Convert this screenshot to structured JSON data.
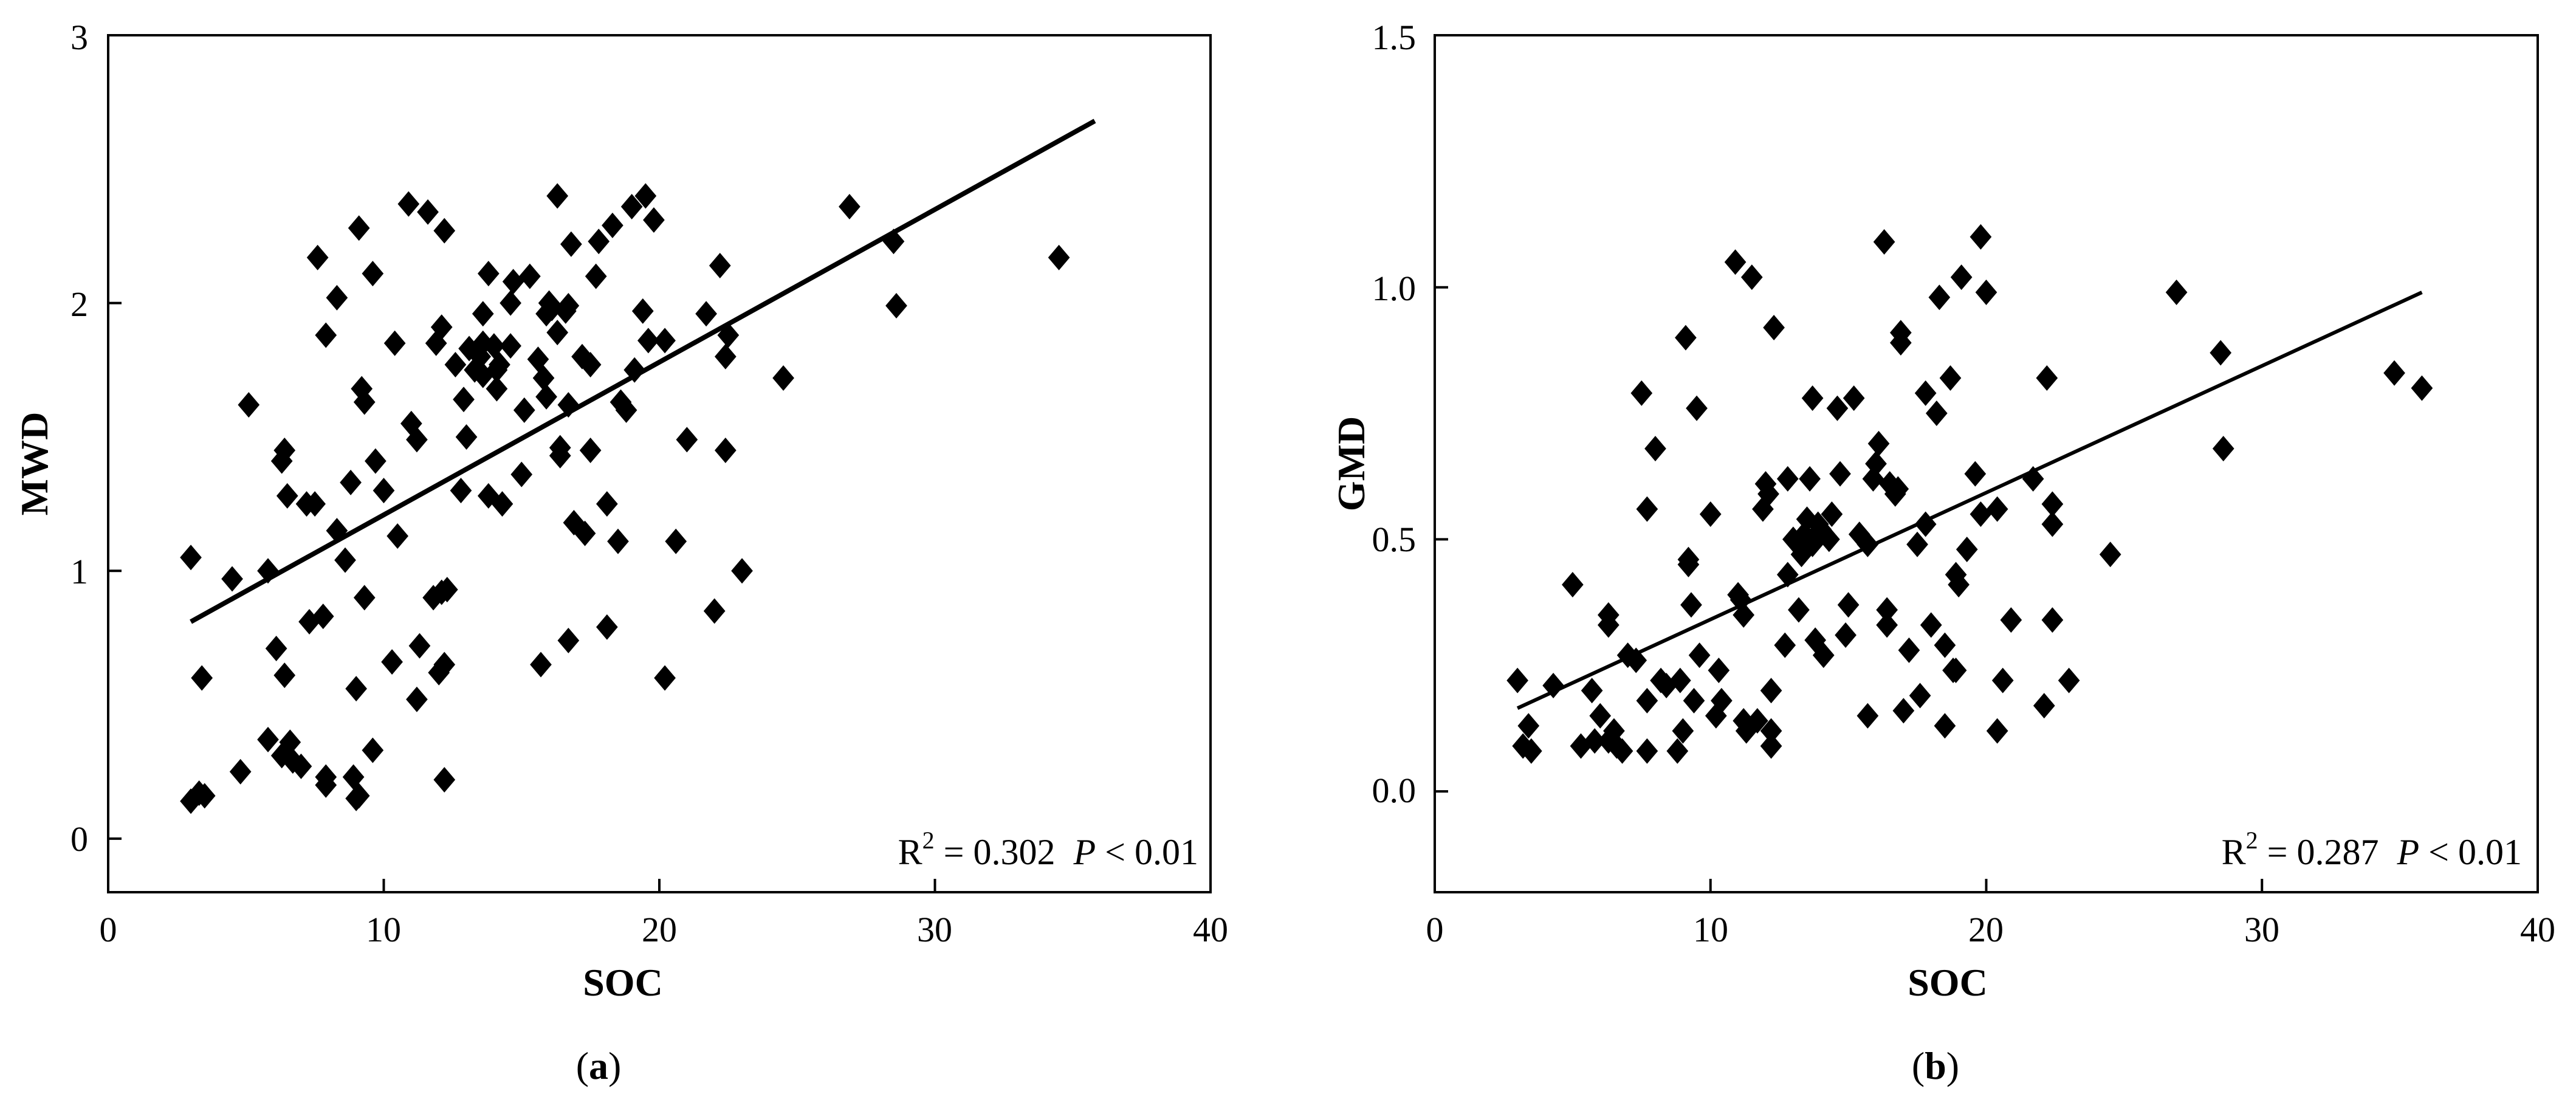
{
  "chart_data": [
    {
      "type": "scatter",
      "panel_label": "(a)",
      "xlabel": "SOC",
      "ylabel": "MWD",
      "xlim": [
        0,
        40
      ],
      "ylim": [
        -0.2,
        3
      ],
      "xticks": [
        "0",
        "10",
        "20",
        "30",
        "40"
      ],
      "yticks": [
        "0",
        "1",
        "2",
        "3"
      ],
      "annotation": {
        "r2_prefix": "R",
        "r2_sup": "2",
        "r2_value": " = 0.302",
        "p_letter": "P",
        "p_value": " < 0.01"
      },
      "fit_line": {
        "x": [
          3.0,
          35.8
        ],
        "y": [
          0.81,
          2.68
        ]
      },
      "points": [
        [
          3.0,
          1.05
        ],
        [
          3.0,
          0.14
        ],
        [
          3.3,
          0.17
        ],
        [
          3.5,
          0.16
        ],
        [
          3.4,
          0.6
        ],
        [
          4.5,
          0.97
        ],
        [
          4.8,
          0.25
        ],
        [
          5.1,
          1.62
        ],
        [
          5.8,
          1.0
        ],
        [
          5.8,
          0.37
        ],
        [
          6.1,
          0.71
        ],
        [
          6.3,
          0.31
        ],
        [
          6.3,
          1.41
        ],
        [
          6.4,
          1.45
        ],
        [
          6.4,
          0.61
        ],
        [
          6.5,
          1.28
        ],
        [
          6.6,
          0.36
        ],
        [
          6.7,
          0.29
        ],
        [
          7.0,
          0.27
        ],
        [
          7.2,
          1.25
        ],
        [
          7.3,
          0.81
        ],
        [
          7.5,
          1.25
        ],
        [
          7.6,
          2.17
        ],
        [
          7.8,
          0.83
        ],
        [
          7.9,
          0.23
        ],
        [
          7.9,
          1.88
        ],
        [
          7.9,
          0.2
        ],
        [
          8.3,
          2.02
        ],
        [
          8.3,
          1.15
        ],
        [
          8.6,
          1.04
        ],
        [
          8.8,
          1.33
        ],
        [
          8.9,
          0.23
        ],
        [
          9.0,
          0.15
        ],
        [
          9.1,
          2.28
        ],
        [
          9.1,
          0.16
        ],
        [
          9.0,
          0.56
        ],
        [
          9.2,
          1.68
        ],
        [
          9.3,
          1.63
        ],
        [
          9.3,
          0.9
        ],
        [
          9.6,
          2.11
        ],
        [
          9.6,
          0.33
        ],
        [
          9.7,
          1.41
        ],
        [
          10.0,
          1.3
        ],
        [
          10.3,
          0.66
        ],
        [
          10.4,
          1.85
        ],
        [
          10.5,
          1.13
        ],
        [
          10.9,
          2.37
        ],
        [
          11.0,
          1.55
        ],
        [
          11.2,
          1.49
        ],
        [
          11.2,
          0.52
        ],
        [
          11.3,
          0.72
        ],
        [
          11.6,
          2.34
        ],
        [
          11.8,
          0.9
        ],
        [
          11.9,
          1.85
        ],
        [
          12.0,
          0.62
        ],
        [
          12.1,
          0.92
        ],
        [
          12.1,
          1.91
        ],
        [
          12.2,
          2.27
        ],
        [
          12.2,
          0.65
        ],
        [
          12.2,
          0.22
        ],
        [
          12.3,
          0.93
        ],
        [
          12.6,
          1.77
        ],
        [
          12.8,
          1.3
        ],
        [
          12.9,
          1.64
        ],
        [
          13.1,
          1.83
        ],
        [
          13.0,
          1.5
        ],
        [
          13.3,
          1.75
        ],
        [
          13.5,
          1.8
        ],
        [
          13.6,
          1.73
        ],
        [
          13.6,
          1.85
        ],
        [
          13.6,
          1.96
        ],
        [
          13.8,
          2.11
        ],
        [
          13.8,
          1.28
        ],
        [
          14.0,
          1.84
        ],
        [
          14.1,
          1.75
        ],
        [
          14.1,
          1.68
        ],
        [
          14.2,
          1.77
        ],
        [
          14.3,
          1.25
        ],
        [
          14.6,
          1.84
        ],
        [
          14.6,
          2.0
        ],
        [
          14.7,
          2.08
        ],
        [
          15.0,
          1.36
        ],
        [
          15.1,
          1.6
        ],
        [
          15.3,
          2.1
        ],
        [
          15.6,
          1.79
        ],
        [
          15.7,
          0.65
        ],
        [
          15.8,
          1.72
        ],
        [
          15.9,
          1.96
        ],
        [
          15.9,
          1.65
        ],
        [
          16.0,
          2.0
        ],
        [
          16.1,
          1.98
        ],
        [
          16.3,
          2.4
        ],
        [
          16.3,
          1.89
        ],
        [
          16.4,
          1.43
        ],
        [
          16.4,
          1.46
        ],
        [
          16.6,
          1.97
        ],
        [
          16.7,
          1.99
        ],
        [
          16.7,
          1.62
        ],
        [
          16.8,
          2.22
        ],
        [
          16.7,
          0.74
        ],
        [
          16.9,
          1.18
        ],
        [
          17.2,
          1.8
        ],
        [
          17.3,
          1.14
        ],
        [
          17.5,
          1.77
        ],
        [
          17.5,
          1.45
        ],
        [
          17.7,
          2.1
        ],
        [
          17.8,
          2.23
        ],
        [
          18.1,
          1.25
        ],
        [
          18.1,
          0.79
        ],
        [
          18.3,
          2.29
        ],
        [
          18.5,
          1.11
        ],
        [
          18.6,
          1.63
        ],
        [
          18.8,
          1.6
        ],
        [
          19.0,
          2.36
        ],
        [
          19.1,
          1.75
        ],
        [
          19.4,
          1.97
        ],
        [
          19.5,
          2.4
        ],
        [
          19.6,
          1.86
        ],
        [
          19.8,
          2.31
        ],
        [
          20.2,
          1.86
        ],
        [
          20.2,
          0.6
        ],
        [
          20.6,
          1.11
        ],
        [
          21.0,
          1.49
        ],
        [
          21.7,
          1.96
        ],
        [
          22.0,
          0.85
        ],
        [
          22.2,
          2.14
        ],
        [
          22.4,
          1.8
        ],
        [
          22.4,
          1.45
        ],
        [
          22.5,
          1.88
        ],
        [
          23.0,
          1.0
        ],
        [
          24.5,
          1.72
        ],
        [
          26.9,
          2.36
        ],
        [
          28.5,
          2.23
        ],
        [
          28.6,
          1.99
        ],
        [
          34.5,
          2.17
        ]
      ]
    },
    {
      "type": "scatter",
      "panel_label": "(b)",
      "xlabel": "SOC",
      "ylabel": "GMD",
      "xlim": [
        0,
        40
      ],
      "ylim": [
        -0.2,
        1.5
      ],
      "xticks": [
        "0",
        "10",
        "20",
        "30",
        "40"
      ],
      "yticks": [
        "0.0",
        "0.5",
        "1.0",
        "1.5"
      ],
      "annotation": {
        "r2_prefix": "R",
        "r2_sup": "2",
        "r2_value": " = 0.287",
        "p_letter": "P",
        "p_value": " < 0.01"
      },
      "fit_line": {
        "x": [
          3.0,
          35.8
        ],
        "y": [
          0.165,
          0.99
        ]
      },
      "points": [
        [
          3.0,
          0.22
        ],
        [
          3.2,
          0.09
        ],
        [
          3.4,
          0.13
        ],
        [
          3.5,
          0.08
        ],
        [
          4.3,
          0.21
        ],
        [
          5.0,
          0.41
        ],
        [
          5.3,
          0.09
        ],
        [
          5.7,
          0.2
        ],
        [
          5.8,
          0.1
        ],
        [
          6.0,
          0.15
        ],
        [
          6.3,
          0.1
        ],
        [
          6.3,
          0.35
        ],
        [
          6.3,
          0.33
        ],
        [
          6.5,
          0.12
        ],
        [
          6.6,
          0.09
        ],
        [
          6.8,
          0.08
        ],
        [
          7.0,
          0.27
        ],
        [
          7.3,
          0.26
        ],
        [
          7.5,
          0.79
        ],
        [
          7.7,
          0.56
        ],
        [
          7.7,
          0.18
        ],
        [
          7.7,
          0.08
        ],
        [
          8.0,
          0.68
        ],
        [
          8.2,
          0.22
        ],
        [
          8.4,
          0.21
        ],
        [
          8.8,
          0.08
        ],
        [
          8.9,
          0.22
        ],
        [
          9.0,
          0.12
        ],
        [
          9.1,
          0.9
        ],
        [
          9.2,
          0.46
        ],
        [
          9.2,
          0.45
        ],
        [
          9.3,
          0.37
        ],
        [
          9.4,
          0.18
        ],
        [
          9.5,
          0.76
        ],
        [
          9.6,
          0.27
        ],
        [
          10.0,
          0.55
        ],
        [
          10.2,
          0.15
        ],
        [
          10.3,
          0.24
        ],
        [
          10.4,
          0.18
        ],
        [
          10.9,
          1.05
        ],
        [
          11.0,
          0.39
        ],
        [
          11.1,
          0.38
        ],
        [
          11.2,
          0.14
        ],
        [
          11.2,
          0.35
        ],
        [
          11.3,
          0.12
        ],
        [
          11.5,
          1.02
        ],
        [
          11.7,
          0.14
        ],
        [
          11.9,
          0.56
        ],
        [
          12.0,
          0.61
        ],
        [
          12.1,
          0.59
        ],
        [
          12.2,
          0.09
        ],
        [
          12.2,
          0.12
        ],
        [
          12.2,
          0.2
        ],
        [
          12.3,
          0.92
        ],
        [
          12.7,
          0.29
        ],
        [
          12.8,
          0.43
        ],
        [
          12.8,
          0.62
        ],
        [
          13.0,
          0.5
        ],
        [
          13.2,
          0.36
        ],
        [
          13.3,
          0.47
        ],
        [
          13.4,
          0.51
        ],
        [
          13.5,
          0.54
        ],
        [
          13.6,
          0.62
        ],
        [
          13.7,
          0.78
        ],
        [
          13.7,
          0.49
        ],
        [
          13.8,
          0.3
        ],
        [
          13.9,
          0.53
        ],
        [
          14.0,
          0.52
        ],
        [
          14.1,
          0.27
        ],
        [
          14.3,
          0.5
        ],
        [
          14.4,
          0.55
        ],
        [
          14.6,
          0.76
        ],
        [
          14.7,
          0.63
        ],
        [
          14.9,
          0.31
        ],
        [
          15.0,
          0.37
        ],
        [
          15.2,
          0.78
        ],
        [
          15.4,
          0.51
        ],
        [
          15.7,
          0.49
        ],
        [
          15.7,
          0.15
        ],
        [
          15.9,
          0.62
        ],
        [
          16.0,
          0.65
        ],
        [
          16.1,
          0.69
        ],
        [
          16.3,
          1.09
        ],
        [
          16.4,
          0.36
        ],
        [
          16.4,
          0.33
        ],
        [
          16.5,
          0.61
        ],
        [
          16.7,
          0.59
        ],
        [
          16.8,
          0.6
        ],
        [
          16.9,
          0.89
        ],
        [
          16.9,
          0.91
        ],
        [
          17.0,
          0.16
        ],
        [
          17.2,
          0.28
        ],
        [
          17.5,
          0.49
        ],
        [
          17.6,
          0.19
        ],
        [
          17.8,
          0.79
        ],
        [
          17.8,
          0.53
        ],
        [
          18.0,
          0.33
        ],
        [
          18.2,
          0.75
        ],
        [
          18.3,
          0.98
        ],
        [
          18.5,
          0.29
        ],
        [
          18.5,
          0.13
        ],
        [
          18.7,
          0.82
        ],
        [
          18.8,
          0.24
        ],
        [
          18.9,
          0.24
        ],
        [
          18.9,
          0.43
        ],
        [
          19.0,
          0.41
        ],
        [
          19.1,
          1.02
        ],
        [
          19.3,
          0.48
        ],
        [
          19.6,
          0.63
        ],
        [
          19.8,
          1.1
        ],
        [
          19.8,
          0.55
        ],
        [
          20.0,
          0.99
        ],
        [
          20.4,
          0.56
        ],
        [
          20.4,
          0.12
        ],
        [
          20.6,
          0.22
        ],
        [
          20.9,
          0.34
        ],
        [
          21.7,
          0.62
        ],
        [
          22.1,
          0.17
        ],
        [
          22.2,
          0.82
        ],
        [
          22.4,
          0.57
        ],
        [
          22.4,
          0.53
        ],
        [
          22.4,
          0.34
        ],
        [
          23.0,
          0.22
        ],
        [
          24.5,
          0.47
        ],
        [
          26.9,
          0.99
        ],
        [
          28.5,
          0.87
        ],
        [
          28.6,
          0.68
        ],
        [
          34.8,
          0.83
        ],
        [
          35.8,
          0.8
        ]
      ]
    }
  ]
}
